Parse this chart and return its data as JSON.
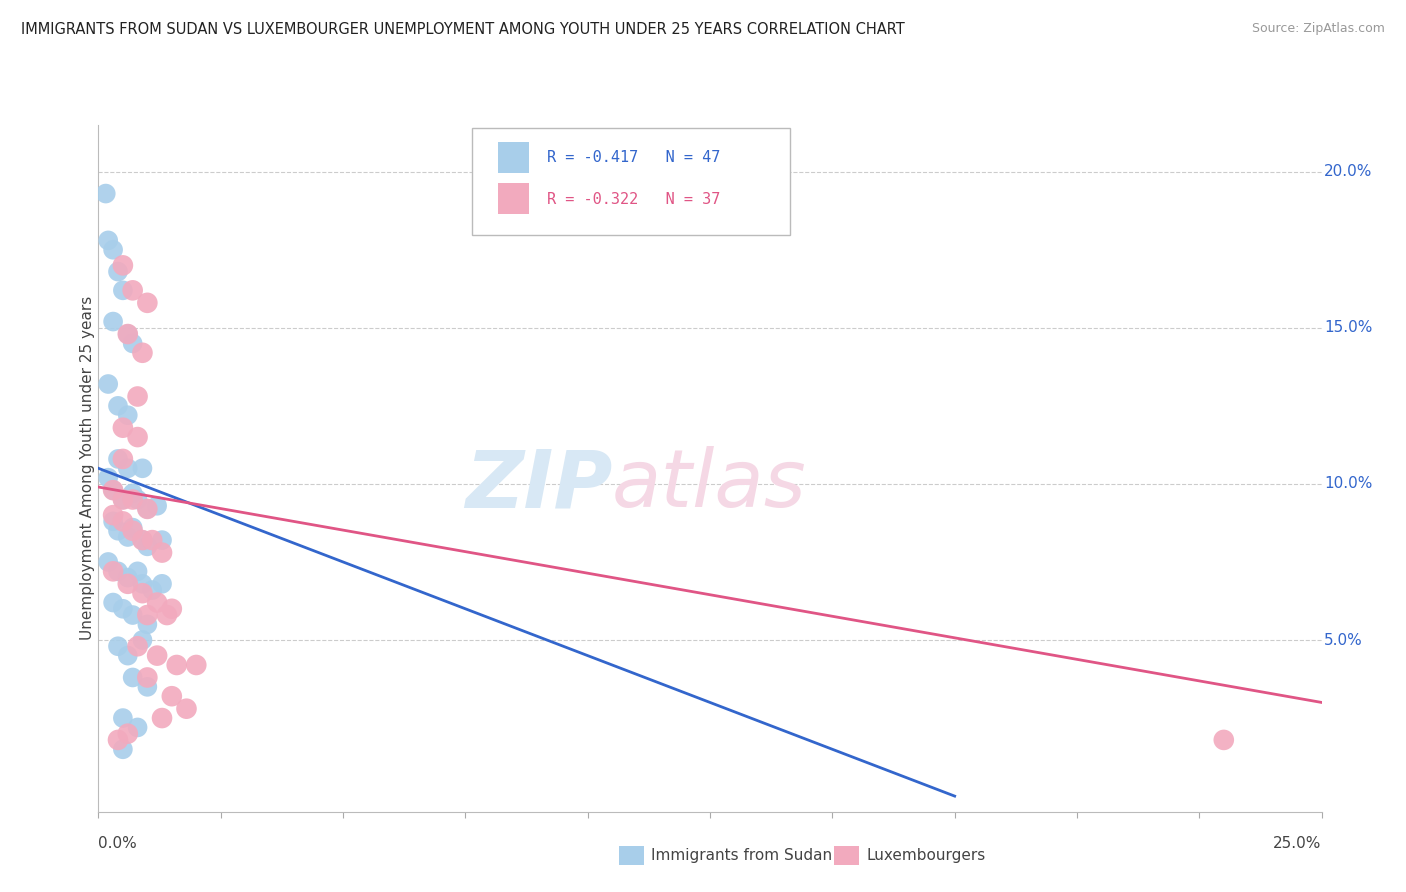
{
  "title": "IMMIGRANTS FROM SUDAN VS LUXEMBOURGER UNEMPLOYMENT AMONG YOUTH UNDER 25 YEARS CORRELATION CHART",
  "source": "Source: ZipAtlas.com",
  "ylabel": "Unemployment Among Youth under 25 years",
  "ytick_labels": [
    "20.0%",
    "15.0%",
    "10.0%",
    "5.0%"
  ],
  "ytick_values": [
    0.2,
    0.15,
    0.1,
    0.05
  ],
  "xlim": [
    0.0,
    0.25
  ],
  "ylim": [
    -0.005,
    0.215
  ],
  "legend_blue_r": "R = -0.417",
  "legend_blue_n": "N = 47",
  "legend_pink_r": "R = -0.322",
  "legend_pink_n": "N = 37",
  "legend_label_blue": "Immigrants from Sudan",
  "legend_label_pink": "Luxembourgers",
  "blue_color": "#A8CEEA",
  "pink_color": "#F2AABE",
  "blue_line_color": "#3366CC",
  "pink_line_color": "#E05585",
  "blue_scatter": [
    [
      0.0015,
      0.193
    ],
    [
      0.002,
      0.178
    ],
    [
      0.003,
      0.175
    ],
    [
      0.004,
      0.168
    ],
    [
      0.005,
      0.162
    ],
    [
      0.003,
      0.152
    ],
    [
      0.006,
      0.148
    ],
    [
      0.002,
      0.132
    ],
    [
      0.007,
      0.145
    ],
    [
      0.004,
      0.125
    ],
    [
      0.006,
      0.122
    ],
    [
      0.004,
      0.108
    ],
    [
      0.006,
      0.105
    ],
    [
      0.009,
      0.105
    ],
    [
      0.002,
      0.102
    ],
    [
      0.003,
      0.098
    ],
    [
      0.005,
      0.095
    ],
    [
      0.007,
      0.097
    ],
    [
      0.008,
      0.095
    ],
    [
      0.01,
      0.092
    ],
    [
      0.012,
      0.093
    ],
    [
      0.003,
      0.088
    ],
    [
      0.004,
      0.085
    ],
    [
      0.006,
      0.083
    ],
    [
      0.007,
      0.086
    ],
    [
      0.009,
      0.082
    ],
    [
      0.01,
      0.08
    ],
    [
      0.013,
      0.082
    ],
    [
      0.002,
      0.075
    ],
    [
      0.004,
      0.072
    ],
    [
      0.006,
      0.07
    ],
    [
      0.008,
      0.072
    ],
    [
      0.009,
      0.068
    ],
    [
      0.011,
      0.066
    ],
    [
      0.013,
      0.068
    ],
    [
      0.003,
      0.062
    ],
    [
      0.005,
      0.06
    ],
    [
      0.007,
      0.058
    ],
    [
      0.01,
      0.055
    ],
    [
      0.004,
      0.048
    ],
    [
      0.006,
      0.045
    ],
    [
      0.009,
      0.05
    ],
    [
      0.007,
      0.038
    ],
    [
      0.01,
      0.035
    ],
    [
      0.005,
      0.025
    ],
    [
      0.008,
      0.022
    ],
    [
      0.005,
      0.015
    ]
  ],
  "pink_scatter": [
    [
      0.005,
      0.17
    ],
    [
      0.007,
      0.162
    ],
    [
      0.01,
      0.158
    ],
    [
      0.006,
      0.148
    ],
    [
      0.009,
      0.142
    ],
    [
      0.008,
      0.128
    ],
    [
      0.005,
      0.118
    ],
    [
      0.008,
      0.115
    ],
    [
      0.005,
      0.108
    ],
    [
      0.003,
      0.098
    ],
    [
      0.005,
      0.095
    ],
    [
      0.007,
      0.095
    ],
    [
      0.01,
      0.092
    ],
    [
      0.003,
      0.09
    ],
    [
      0.005,
      0.088
    ],
    [
      0.007,
      0.085
    ],
    [
      0.009,
      0.082
    ],
    [
      0.011,
      0.082
    ],
    [
      0.013,
      0.078
    ],
    [
      0.003,
      0.072
    ],
    [
      0.006,
      0.068
    ],
    [
      0.009,
      0.065
    ],
    [
      0.012,
      0.062
    ],
    [
      0.015,
      0.06
    ],
    [
      0.01,
      0.058
    ],
    [
      0.014,
      0.058
    ],
    [
      0.008,
      0.048
    ],
    [
      0.012,
      0.045
    ],
    [
      0.016,
      0.042
    ],
    [
      0.02,
      0.042
    ],
    [
      0.01,
      0.038
    ],
    [
      0.015,
      0.032
    ],
    [
      0.013,
      0.025
    ],
    [
      0.018,
      0.028
    ],
    [
      0.004,
      0.018
    ],
    [
      0.006,
      0.02
    ],
    [
      0.23,
      0.018
    ]
  ],
  "blue_trend_x": [
    0.0,
    0.175
  ],
  "blue_trend_y": [
    0.105,
    0.0
  ],
  "pink_trend_x": [
    0.0,
    0.25
  ],
  "pink_trend_y": [
    0.099,
    0.03
  ]
}
